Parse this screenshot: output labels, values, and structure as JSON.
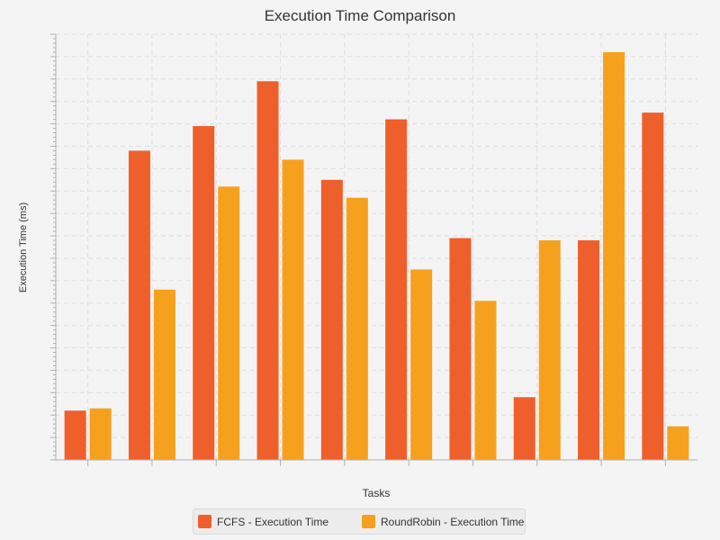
{
  "chart_data": {
    "type": "bar",
    "title": "Execution Time Comparison",
    "xlabel": "Tasks",
    "ylabel": "Execution Time (ms)",
    "categories": [
      "",
      "",
      "",
      "",
      "",
      "",
      "",
      "",
      "",
      ""
    ],
    "ylim": [
      0,
      95
    ],
    "grid": true,
    "legend_position": "bottom",
    "series": [
      {
        "name": "FCFS - Execution Time",
        "color": "#ef5f2b",
        "values": [
          11,
          69,
          74.5,
          84.5,
          62.5,
          76,
          49.5,
          14,
          49,
          77.5
        ]
      },
      {
        "name": "RoundRobin - Execution Time",
        "color": "#f6a11e",
        "values": [
          11.5,
          38,
          61,
          67,
          58.5,
          42.5,
          35.5,
          49,
          91,
          7.5
        ]
      }
    ]
  }
}
